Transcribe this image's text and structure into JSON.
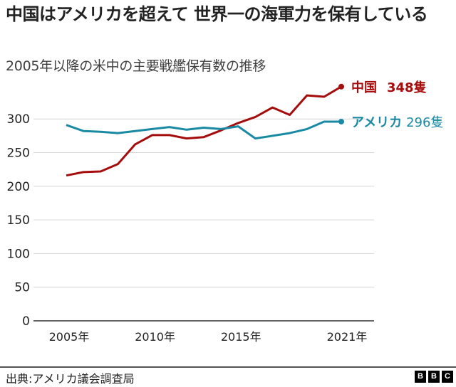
{
  "title": "中国はアメリカを超えて 世界一の海軍力を保有している",
  "subtitle": "2005年以降の米中の主要戦艦保有数の推移",
  "footer": {
    "source": "出典:アメリカ議会調査局",
    "logo": [
      "B",
      "B",
      "C"
    ]
  },
  "labels": {
    "china": "中国",
    "china_value": "348隻",
    "us": "アメリカ",
    "us_value": "296隻"
  },
  "colors": {
    "china": "#A50D0D",
    "us": "#1A8AA4"
  },
  "chart_data": {
    "type": "line",
    "title": "中国はアメリカを超えて 世界一の海軍力を保有している",
    "subtitle": "2005年以降の米中の主要戦艦保有数の推移",
    "xlabel": "",
    "ylabel": "",
    "x": [
      2005,
      2006,
      2007,
      2008,
      2009,
      2010,
      2011,
      2012,
      2013,
      2014,
      2015,
      2016,
      2017,
      2018,
      2019,
      2020,
      2021
    ],
    "x_tick_labels": [
      "2005年",
      "2010年",
      "2015年",
      "2021年"
    ],
    "x_tick_values": [
      2005,
      2010,
      2015,
      2021
    ],
    "y_tick_labels": [
      "0",
      "50",
      "100",
      "150",
      "200",
      "250",
      "300"
    ],
    "ylim": [
      0,
      350
    ],
    "grid": true,
    "legend_position": "inline-right",
    "series": [
      {
        "name": "中国",
        "end_label": "中国 348隻",
        "color": "#A50D0D",
        "values": [
          216,
          221,
          222,
          233,
          262,
          276,
          276,
          271,
          273,
          283,
          294,
          303,
          317,
          306,
          335,
          333,
          348
        ]
      },
      {
        "name": "アメリカ",
        "end_label": "アメリカ 296隻",
        "color": "#1A8AA4",
        "values": [
          291,
          282,
          281,
          279,
          282,
          285,
          288,
          284,
          287,
          285,
          289,
          271,
          275,
          279,
          285,
          296,
          296
        ]
      }
    ]
  }
}
